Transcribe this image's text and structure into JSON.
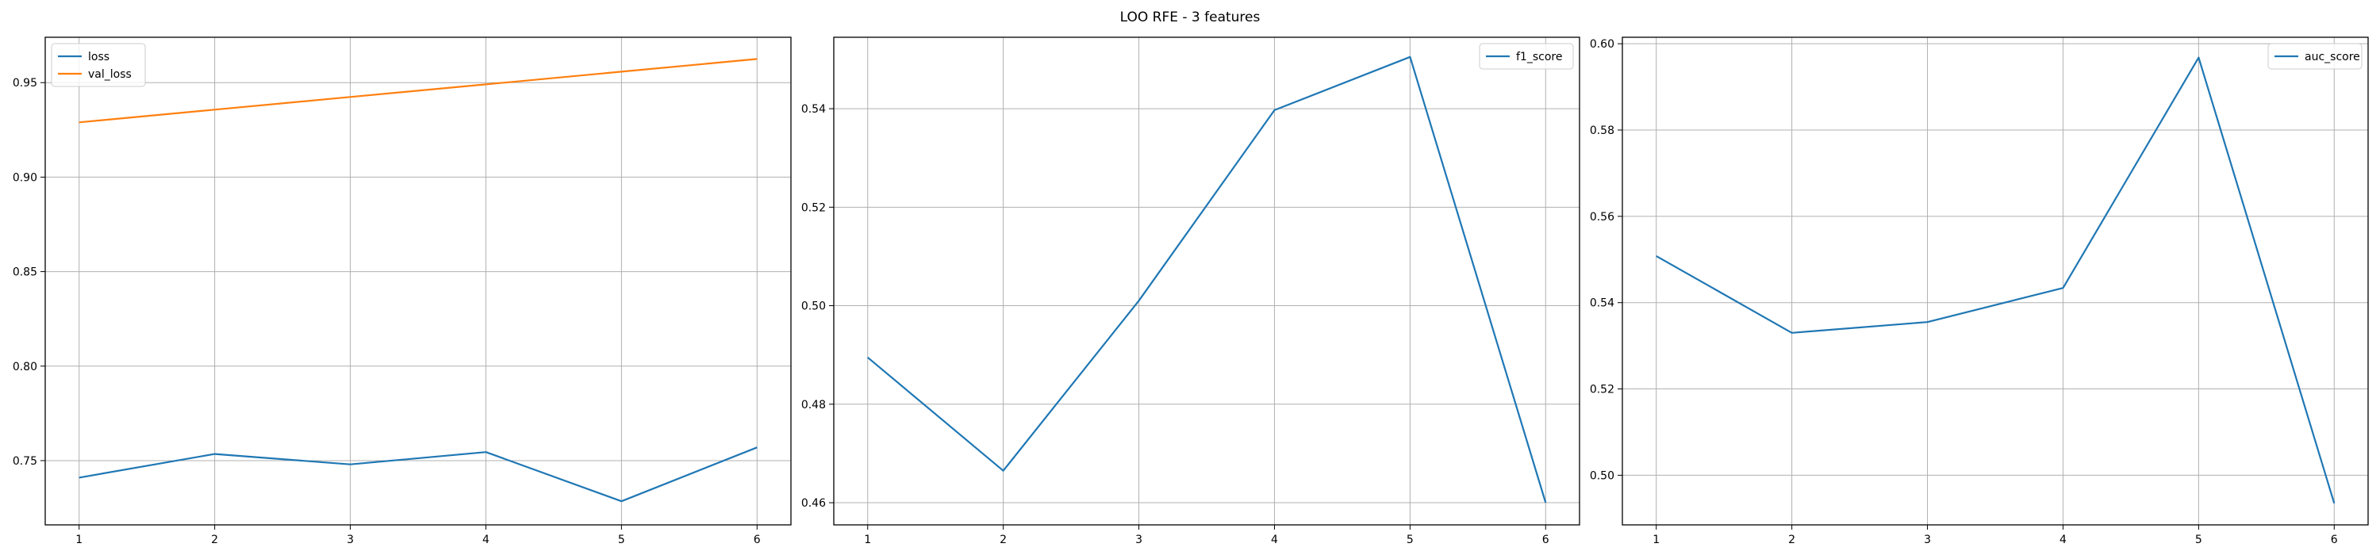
{
  "suptitle": "LOO RFE - 3 features",
  "colors": {
    "series_blue": "#1f77b4",
    "series_orange": "#ff7f0e",
    "grid": "#b0b0b0",
    "axes": "#000000"
  },
  "chart_data": [
    {
      "type": "line",
      "title": "",
      "xlabel": "",
      "ylabel": "",
      "x": [
        1,
        2,
        3,
        4,
        5,
        6
      ],
      "xticks": [
        1,
        2,
        3,
        4,
        5,
        6
      ],
      "yticks": [
        0.75,
        0.8,
        0.85,
        0.9,
        0.95
      ],
      "ytick_labels": [
        "0.75",
        "0.80",
        "0.85",
        "0.90",
        "0.95"
      ],
      "ylim": [
        0.716,
        0.974
      ],
      "grid": true,
      "legend": "upper left",
      "series": [
        {
          "name": "loss",
          "color": "#1f77b4",
          "values": [
            0.741,
            0.7535,
            0.748,
            0.7545,
            0.7285,
            0.757
          ]
        },
        {
          "name": "val_loss",
          "color": "#ff7f0e",
          "values": [
            0.929,
            0.9357,
            0.9424,
            0.9491,
            0.9558,
            0.9625
          ]
        }
      ]
    },
    {
      "type": "line",
      "title": "",
      "xlabel": "",
      "ylabel": "",
      "x": [
        1,
        2,
        3,
        4,
        5,
        6
      ],
      "xticks": [
        1,
        2,
        3,
        4,
        5,
        6
      ],
      "yticks": [
        0.46,
        0.48,
        0.5,
        0.52,
        0.54
      ],
      "ytick_labels": [
        "0.46",
        "0.48",
        "0.50",
        "0.52",
        "0.54"
      ],
      "ylim": [
        0.4555,
        0.5545
      ],
      "grid": true,
      "legend": "upper right",
      "series": [
        {
          "name": "f1_score",
          "color": "#1f77b4",
          "values": [
            0.4895,
            0.4665,
            0.501,
            0.5397,
            0.5505,
            0.46
          ]
        }
      ]
    },
    {
      "type": "line",
      "title": "",
      "xlabel": "",
      "ylabel": "",
      "x": [
        1,
        2,
        3,
        4,
        5,
        6
      ],
      "xticks": [
        1,
        2,
        3,
        4,
        5,
        6
      ],
      "yticks": [
        0.5,
        0.52,
        0.54,
        0.56,
        0.58,
        0.6
      ],
      "ytick_labels": [
        "0.50",
        "0.52",
        "0.54",
        "0.56",
        "0.58",
        "0.60"
      ],
      "ylim": [
        0.4885,
        0.6015
      ],
      "grid": true,
      "legend": "upper right",
      "series": [
        {
          "name": "auc_score",
          "color": "#1f77b4",
          "values": [
            0.5508,
            0.533,
            0.5355,
            0.5434,
            0.5968,
            0.4935
          ]
        }
      ]
    }
  ]
}
